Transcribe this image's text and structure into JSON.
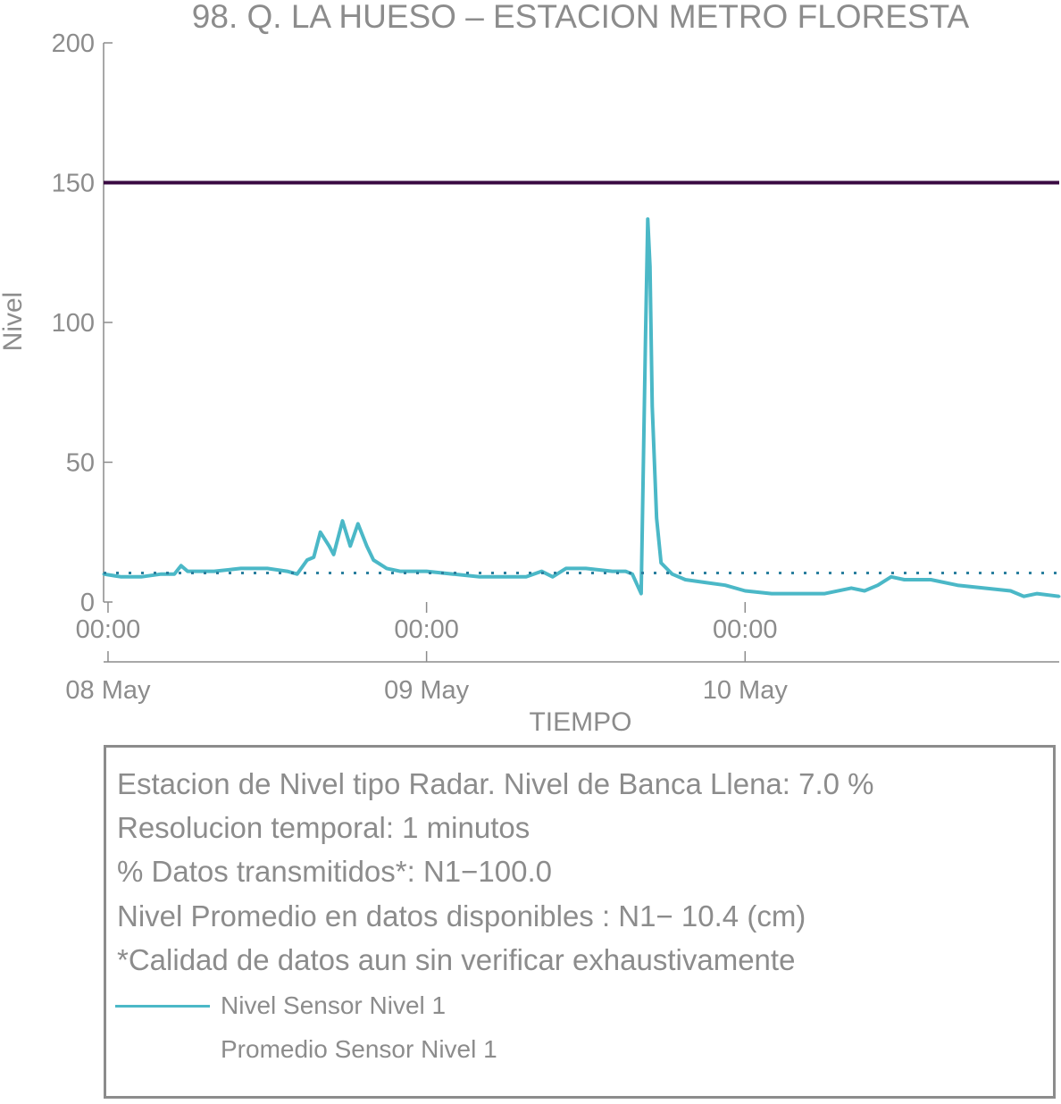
{
  "chart_data": {
    "type": "line",
    "title": "98. Q. LA HUESO – ESTACION METRO FLORESTA",
    "xlabel": "TIEMPO",
    "ylabel": "Nivel",
    "x_range": [
      "2024-05-07T23:40",
      "2024-05-10T23:40"
    ],
    "x_ticks": [
      {
        "x": "2024-05-08T00:00",
        "time": "00:00",
        "date": "08 May"
      },
      {
        "x": "2024-05-09T00:00",
        "time": "00:00",
        "date": "09 May"
      },
      {
        "x": "2024-05-10T00:00",
        "time": "00:00",
        "date": "10 May"
      }
    ],
    "ylim": [
      0,
      200
    ],
    "y_ticks": [
      0,
      50,
      100,
      150,
      200
    ],
    "grid": false,
    "series": [
      {
        "name": "Nivel Sensor Nivel 1",
        "style": "solid",
        "color": "#4bb8c7",
        "points": [
          [
            "2024-05-07T23:40",
            10
          ],
          [
            "2024-05-08T01:00",
            9
          ],
          [
            "2024-05-08T02:30",
            9
          ],
          [
            "2024-05-08T04:00",
            10
          ],
          [
            "2024-05-08T05:00",
            10
          ],
          [
            "2024-05-08T05:30",
            13
          ],
          [
            "2024-05-08T06:00",
            11
          ],
          [
            "2024-05-08T08:00",
            11
          ],
          [
            "2024-05-08T10:00",
            12
          ],
          [
            "2024-05-08T12:00",
            12
          ],
          [
            "2024-05-08T13:30",
            11
          ],
          [
            "2024-05-08T14:15",
            10
          ],
          [
            "2024-05-08T15:00",
            15
          ],
          [
            "2024-05-08T15:30",
            16
          ],
          [
            "2024-05-08T16:00",
            25
          ],
          [
            "2024-05-08T16:40",
            20
          ],
          [
            "2024-05-08T17:00",
            17
          ],
          [
            "2024-05-08T17:40",
            29
          ],
          [
            "2024-05-08T18:15",
            20
          ],
          [
            "2024-05-08T18:50",
            28
          ],
          [
            "2024-05-08T19:30",
            20
          ],
          [
            "2024-05-08T20:00",
            15
          ],
          [
            "2024-05-08T21:00",
            12
          ],
          [
            "2024-05-08T22:00",
            11
          ],
          [
            "2024-05-09T00:00",
            11
          ],
          [
            "2024-05-09T02:00",
            10
          ],
          [
            "2024-05-09T04:00",
            9
          ],
          [
            "2024-05-09T06:00",
            9
          ],
          [
            "2024-05-09T07:30",
            9
          ],
          [
            "2024-05-09T08:40",
            11
          ],
          [
            "2024-05-09T09:30",
            9
          ],
          [
            "2024-05-09T10:30",
            12
          ],
          [
            "2024-05-09T12:00",
            12
          ],
          [
            "2024-05-09T14:00",
            11
          ],
          [
            "2024-05-09T15:00",
            11
          ],
          [
            "2024-05-09T15:30",
            10
          ],
          [
            "2024-05-09T16:10",
            3
          ],
          [
            "2024-05-09T16:30",
            95
          ],
          [
            "2024-05-09T16:40",
            137
          ],
          [
            "2024-05-09T16:50",
            120
          ],
          [
            "2024-05-09T17:00",
            70
          ],
          [
            "2024-05-09T17:20",
            30
          ],
          [
            "2024-05-09T17:40",
            14
          ],
          [
            "2024-05-09T18:30",
            10
          ],
          [
            "2024-05-09T19:30",
            8
          ],
          [
            "2024-05-09T21:00",
            7
          ],
          [
            "2024-05-09T22:30",
            6
          ],
          [
            "2024-05-10T00:00",
            4
          ],
          [
            "2024-05-10T02:00",
            3
          ],
          [
            "2024-05-10T04:00",
            3
          ],
          [
            "2024-05-10T06:00",
            3
          ],
          [
            "2024-05-10T08:00",
            5
          ],
          [
            "2024-05-10T09:00",
            4
          ],
          [
            "2024-05-10T10:00",
            6
          ],
          [
            "2024-05-10T11:00",
            9
          ],
          [
            "2024-05-10T12:00",
            8
          ],
          [
            "2024-05-10T14:00",
            8
          ],
          [
            "2024-05-10T16:00",
            6
          ],
          [
            "2024-05-10T18:00",
            5
          ],
          [
            "2024-05-10T20:00",
            4
          ],
          [
            "2024-05-10T21:00",
            2
          ],
          [
            "2024-05-10T22:00",
            3
          ],
          [
            "2024-05-10T23:40",
            2
          ]
        ]
      },
      {
        "name": "Promedio Sensor Nivel 1",
        "style": "dotted",
        "color": "#2a7f9e",
        "value": 10.4
      }
    ],
    "reference_lines": [
      {
        "y": 150,
        "color": "#3a0a42"
      }
    ]
  },
  "info": {
    "lines": [
      "Estacion de Nivel tipo Radar. Nivel de Banca Llena:  7.0 %",
      "Resolucion temporal: 1 minutos",
      "% Datos transmitidos*: N1−100.0",
      "Nivel Promedio en datos disponibles : N1− 10.4 (cm)",
      "*Calidad de datos aun sin verificar exhaustivamente"
    ],
    "legend": [
      {
        "label": "Nivel Sensor Nivel 1",
        "style": "solid",
        "color": "#4bb8c7"
      },
      {
        "label": "Promedio Sensor Nivel 1",
        "style": "dotted",
        "color": "#2a7f9e"
      }
    ]
  }
}
